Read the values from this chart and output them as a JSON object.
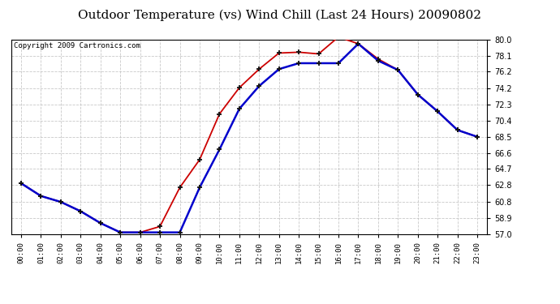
{
  "title": "Outdoor Temperature (vs) Wind Chill (Last 24 Hours) 20090802",
  "copyright": "Copyright 2009 Cartronics.com",
  "hours": [
    "00:00",
    "01:00",
    "02:00",
    "03:00",
    "04:00",
    "05:00",
    "06:00",
    "07:00",
    "08:00",
    "09:00",
    "10:00",
    "11:00",
    "12:00",
    "13:00",
    "14:00",
    "15:00",
    "16:00",
    "17:00",
    "18:00",
    "19:00",
    "20:00",
    "21:00",
    "22:00",
    "23:00"
  ],
  "temp": [
    63.0,
    61.5,
    60.8,
    59.7,
    58.3,
    57.2,
    57.2,
    57.9,
    62.5,
    65.8,
    71.2,
    74.3,
    76.5,
    78.4,
    78.5,
    78.3,
    80.3,
    79.5,
    77.7,
    76.4,
    73.5,
    71.5,
    69.3,
    68.5
  ],
  "windchill": [
    63.0,
    61.5,
    60.8,
    59.7,
    58.3,
    57.2,
    57.2,
    57.2,
    57.2,
    62.5,
    67.0,
    71.8,
    74.5,
    76.5,
    77.2,
    77.2,
    77.2,
    79.5,
    77.5,
    76.4,
    73.5,
    71.5,
    69.3,
    68.5
  ],
  "temp_color": "#cc0000",
  "windchill_color": "#0000cc",
  "ylim_min": 57.0,
  "ylim_max": 80.0,
  "yticks": [
    57.0,
    58.9,
    60.8,
    62.8,
    64.7,
    66.6,
    68.5,
    70.4,
    72.3,
    74.2,
    76.2,
    78.1,
    80.0
  ],
  "bg_color": "#ffffff",
  "plot_bg": "#ffffff",
  "grid_color": "#bbbbbb",
  "title_fontsize": 11,
  "copyright_fontsize": 6.5
}
